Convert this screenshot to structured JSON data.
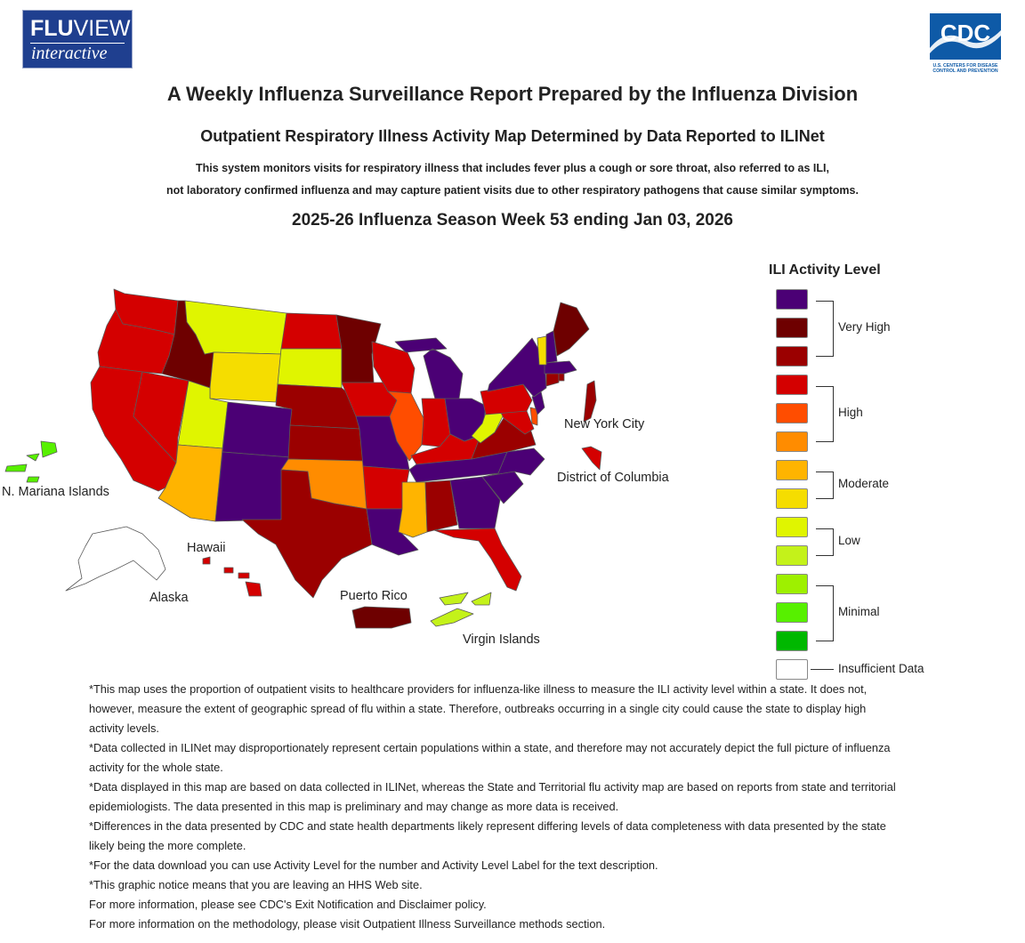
{
  "header": {
    "logo": {
      "line1_bold": "FLU",
      "line1_rest": "VIEW",
      "line2": "interactive"
    },
    "cdc_logo": {
      "name": "CDC",
      "tagline1": "U.S. CENTERS FOR DISEASE",
      "tagline2": "CONTROL AND PREVENTION"
    }
  },
  "title": "A Weekly Influenza Surveillance Report Prepared by the Influenza Division",
  "subtitle": "Outpatient Respiratory Illness Activity Map Determined by Data Reported to ILINet",
  "description_line1": "This system monitors visits for respiratory illness that includes fever plus a cough or sore throat, also referred to as ILI,",
  "description_line2": "not laboratory confirmed influenza and may capture patient visits due to other respiratory pathogens that cause similar symptoms.",
  "week_label": "2025-26 Influenza Season Week 53 ending Jan 03, 2026",
  "colors": {
    "vh3": "#4b0075",
    "vh2": "#6e0000",
    "vh1": "#9b0000",
    "h3": "#d40000",
    "h2": "#ff4d00",
    "h1": "#ff8c00",
    "m2": "#ffb400",
    "m1": "#f5dd00",
    "l2": "#e0f500",
    "l1": "#c4f21a",
    "min3": "#9ef000",
    "min2": "#57f000",
    "min1": "#00b800",
    "insufficient": "#ffffff"
  },
  "map_labels": {
    "nyc": "New York City",
    "dc": "District of Columbia",
    "nmi": "N. Mariana Islands",
    "hawaii": "Hawaii",
    "alaska": "Alaska",
    "pr": "Puerto Rico",
    "vi": "Virgin Islands"
  },
  "map_data": {
    "WA": "h3",
    "OR": "h3",
    "CA": "h3",
    "NV": "h3",
    "ID": "vh2",
    "MT": "l2",
    "WY": "m1",
    "UT": "l2",
    "AZ": "m2",
    "CO": "vh3",
    "NM": "vh3",
    "ND": "h3",
    "SD": "l2",
    "NE": "vh1",
    "KS": "vh1",
    "OK": "h1",
    "TX": "vh1",
    "MN": "vh2",
    "IA": "h3",
    "MO": "vh3",
    "AR": "h3",
    "LA": "vh3",
    "WI": "h3",
    "IL": "h2",
    "MI": "vh3",
    "IN": "h3",
    "OH": "vh3",
    "KY": "h3",
    "TN": "vh3",
    "MS": "m2",
    "AL": "vh1",
    "GA": "vh3",
    "FL": "h3",
    "SC": "vh3",
    "NC": "vh3",
    "VA": "vh1",
    "WV": "l2",
    "MD": "h3",
    "DE": "h2",
    "PA": "h3",
    "NJ": "vh3",
    "NY": "vh3",
    "CT": "vh1",
    "RI": "vh1",
    "MA": "vh3",
    "VT": "m1",
    "NH": "vh3",
    "ME": "vh2",
    "AK": "insufficient",
    "HI": "h3",
    "PR": "vh2",
    "VI": "l1",
    "NMI": "min2",
    "NYC": "vh1",
    "DC": "h3"
  },
  "legend": {
    "title": "ILI Activity Level",
    "groups": [
      "Very High",
      "High",
      "Moderate",
      "Low",
      "Minimal",
      "Insufficient Data"
    ],
    "swatches": [
      "vh3",
      "vh2",
      "vh1",
      "h3",
      "h2",
      "h1",
      "m2",
      "m1",
      "l2",
      "l1",
      "min3",
      "min2",
      "min1",
      "insufficient"
    ]
  },
  "notes": [
    "*This map uses the proportion of outpatient visits to healthcare providers for influenza-like illness to measure the ILI activity level within a state. It does not, however, measure the extent of geographic spread of flu within a state. Therefore, outbreaks occurring in a single city could cause the state to display high activity levels.",
    "*Data collected in ILINet may disproportionately represent certain populations within a state, and therefore may not accurately depict the full picture of influenza activity for the whole state.",
    "*Data displayed in this map are based on data collected in ILINet, whereas the State and Territorial flu activity map are based on reports from state and territorial epidemiologists. The data presented in this map is preliminary and may change as more data is received.",
    "*Differences in the data presented by CDC and state health departments likely represent differing levels of data completeness with data presented by the state likely being the more complete.",
    "*For the data download you can use Activity Level for the number and Activity Level Label for the text description.",
    "*This graphic notice means that you are leaving an HHS Web site.",
    "For more information, please see CDC's Exit Notification and Disclaimer policy.",
    "For more information on the methodology, please visit Outpatient Illness Surveillance methods section."
  ]
}
